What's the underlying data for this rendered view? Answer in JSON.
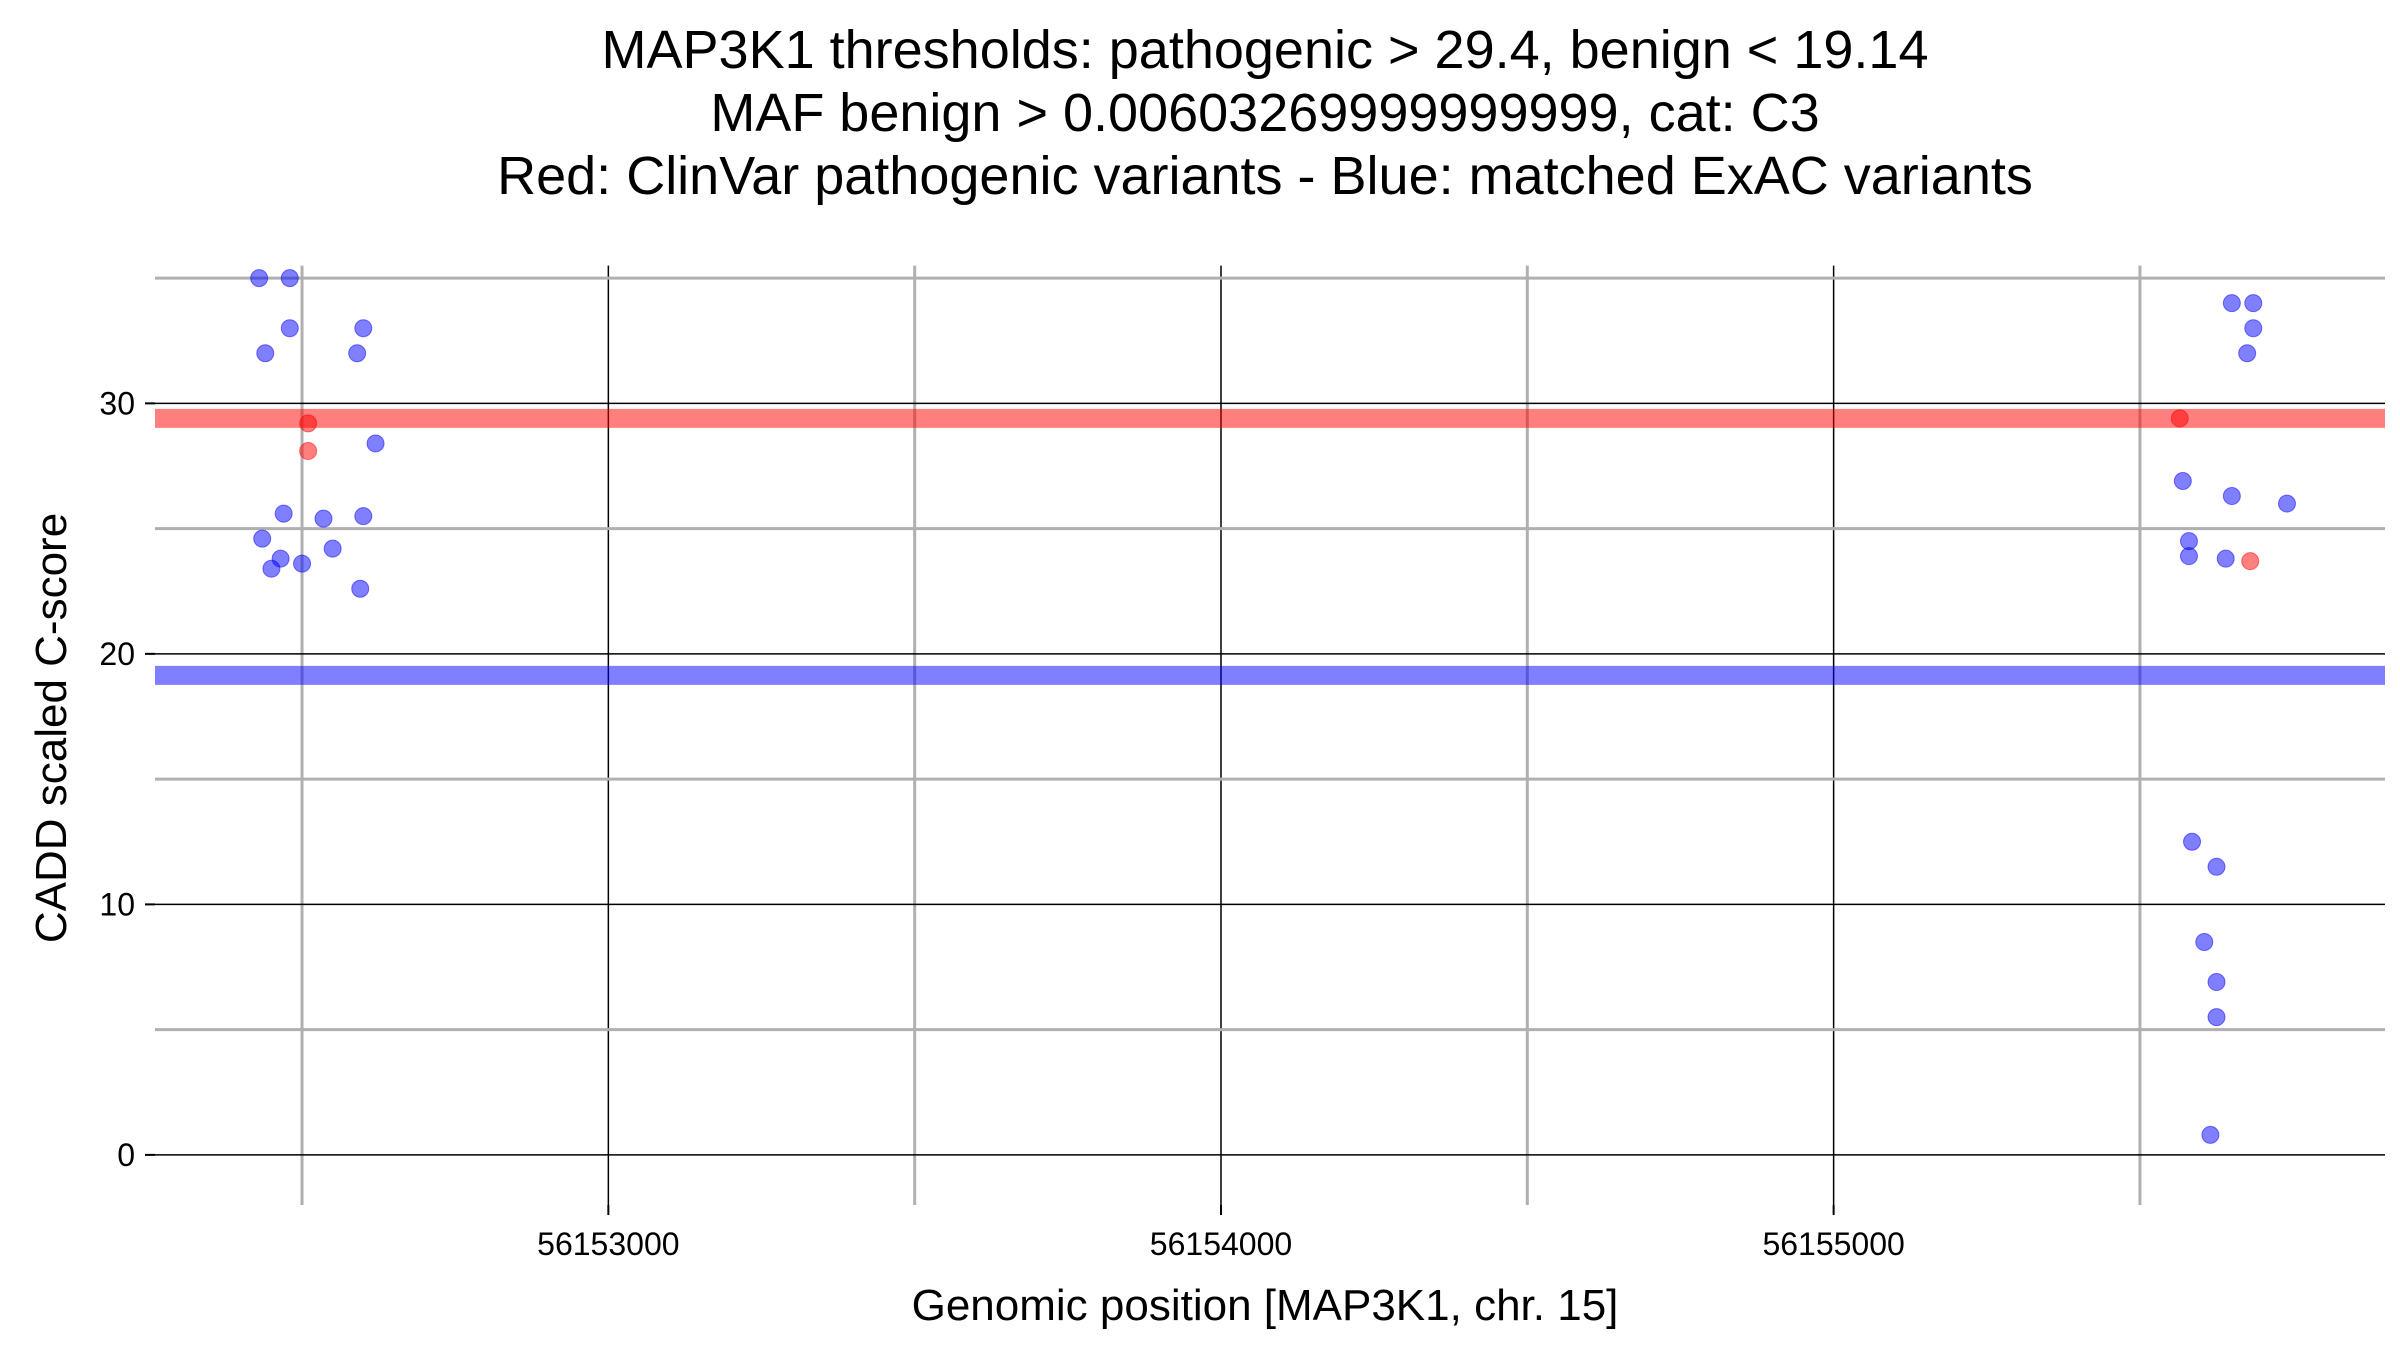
{
  "chart_data": {
    "type": "scatter",
    "title_lines": [
      "MAP3K1 thresholds: pathogenic > 29.4, benign < 19.14",
      "MAF benign > 0.00603269999999999, cat: C3",
      "Red: ClinVar pathogenic variants - Blue: matched ExAC variants"
    ],
    "xlabel": "Genomic position [MAP3K1, chr. 15]",
    "ylabel": "CADD scaled C-score",
    "xlim": [
      56152260,
      56155900
    ],
    "ylim": [
      -2,
      37
    ],
    "x_major_ticks": [
      56153000,
      56154000,
      56155000
    ],
    "x_minor_gridlines": [
      56152500,
      56153500,
      56154500,
      56155500
    ],
    "y_major_ticks": [
      0,
      10,
      20,
      30
    ],
    "y_minor_gridlines": [
      5,
      15,
      25,
      35
    ],
    "x_tick_labels": [
      "56153000",
      "56154000",
      "56155000"
    ],
    "y_tick_labels": [
      "0",
      "10",
      "20",
      "30"
    ],
    "thresholds": [
      {
        "name": "pathogenic",
        "value": 29.4,
        "color": "#ff0000"
      },
      {
        "name": "benign",
        "value": 19.14,
        "color": "#0000ff"
      }
    ],
    "series": [
      {
        "name": "ClinVar pathogenic variants",
        "color": "#ff0000",
        "points": [
          [
            56152510,
            29.2
          ],
          [
            56152510,
            28.1
          ],
          [
            56155565,
            29.4
          ],
          [
            56155680,
            23.7
          ]
        ]
      },
      {
        "name": "matched ExAC variants",
        "color": "#0000ff",
        "points": [
          [
            56152430,
            35.0
          ],
          [
            56152480,
            35.0
          ],
          [
            56152480,
            33.0
          ],
          [
            56152440,
            32.0
          ],
          [
            56152600,
            33.0
          ],
          [
            56152590,
            32.0
          ],
          [
            56152620,
            28.4
          ],
          [
            56152470,
            25.6
          ],
          [
            56152535,
            25.4
          ],
          [
            56152600,
            25.5
          ],
          [
            56152435,
            24.6
          ],
          [
            56152465,
            23.8
          ],
          [
            56152450,
            23.4
          ],
          [
            56152500,
            23.6
          ],
          [
            56152550,
            24.2
          ],
          [
            56152595,
            22.6
          ],
          [
            56155650,
            34.0
          ],
          [
            56155685,
            34.0
          ],
          [
            56155685,
            33.0
          ],
          [
            56155675,
            32.0
          ],
          [
            56155570,
            26.9
          ],
          [
            56155650,
            26.3
          ],
          [
            56155740,
            26.0
          ],
          [
            56155580,
            24.5
          ],
          [
            56155580,
            23.9
          ],
          [
            56155640,
            23.8
          ],
          [
            56155585,
            12.5
          ],
          [
            56155625,
            11.5
          ],
          [
            56155605,
            8.5
          ],
          [
            56155625,
            6.9
          ],
          [
            56155625,
            5.5
          ],
          [
            56155615,
            0.8
          ]
        ]
      }
    ]
  }
}
